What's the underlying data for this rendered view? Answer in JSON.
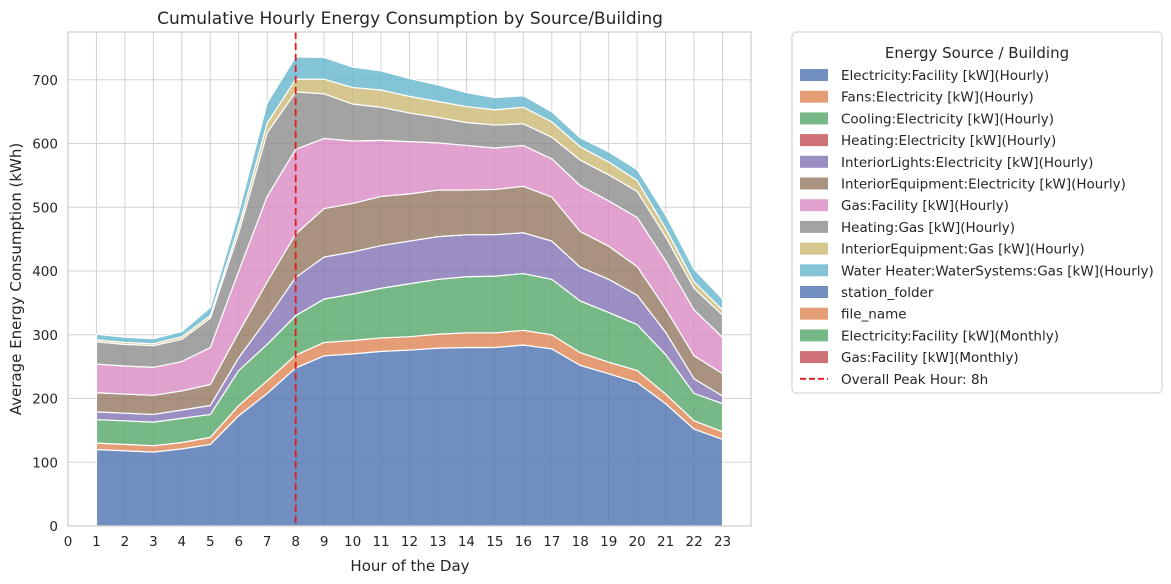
{
  "chart_data": {
    "type": "area",
    "stacked": true,
    "title": "Cumulative Hourly Energy Consumption by Source/Building",
    "xlabel": "Hour of the Day",
    "ylabel": "Average Energy Consumption (kWh)",
    "xlim": [
      0,
      24
    ],
    "ylim": [
      0,
      775
    ],
    "xticks": [
      "0",
      "1",
      "2",
      "3",
      "4",
      "5",
      "6",
      "7",
      "8",
      "9",
      "10",
      "11",
      "12",
      "13",
      "14",
      "15",
      "16",
      "17",
      "18",
      "19",
      "20",
      "21",
      "22",
      "23"
    ],
    "yticks": [
      "0",
      "100",
      "200",
      "300",
      "400",
      "500",
      "600",
      "700"
    ],
    "grid": true,
    "legend_title": "Energy Source / Building",
    "legend_position": "outside-right",
    "x": [
      1,
      2,
      3,
      4,
      5,
      6,
      7,
      8,
      9,
      10,
      11,
      12,
      13,
      14,
      15,
      16,
      17,
      18,
      19,
      20,
      21,
      22,
      23
    ],
    "series": [
      {
        "name": "Electricity:Facility [kW](Hourly)",
        "color": "#4c72b0",
        "values": [
          120,
          118,
          116,
          121,
          128,
          173,
          208,
          248,
          267,
          270,
          274,
          276,
          279,
          280,
          280,
          284,
          278,
          252,
          239,
          225,
          192,
          152,
          136
        ]
      },
      {
        "name": "Fans:Electricity [kW](Hourly)",
        "color": "#dd8452",
        "values": [
          10,
          10,
          10,
          10,
          11,
          16,
          20,
          20,
          21,
          21,
          21,
          21,
          22,
          23,
          23,
          23,
          22,
          20,
          18,
          19,
          15,
          13,
          12
        ]
      },
      {
        "name": "Cooling:Electricity [kW](Hourly)",
        "color": "#55a868",
        "values": [
          37,
          37,
          37,
          38,
          36,
          55,
          57,
          62,
          68,
          73,
          78,
          83,
          86,
          88,
          89,
          89,
          87,
          81,
          78,
          72,
          62,
          43,
          44
        ]
      },
      {
        "name": "Heating:Electricity [kW](Hourly)",
        "color": "#c44e52",
        "values": [
          0,
          0,
          0,
          0,
          0,
          0,
          0,
          0,
          0,
          0,
          0,
          0,
          0,
          0,
          0,
          0,
          0,
          0,
          0,
          0,
          0,
          0,
          0
        ]
      },
      {
        "name": "InteriorLights:Electricity [kW](Hourly)",
        "color": "#8172b3",
        "values": [
          12,
          12,
          12,
          13,
          14,
          20,
          40,
          60,
          66,
          66,
          67,
          67,
          67,
          66,
          65,
          64,
          60,
          53,
          52,
          46,
          35,
          23,
          12
        ]
      },
      {
        "name": "InteriorEquipment:Electricity [kW](Hourly)",
        "color": "#937860",
        "values": [
          30,
          30,
          30,
          30,
          33,
          40,
          58,
          68,
          76,
          76,
          77,
          74,
          73,
          70,
          71,
          73,
          69,
          56,
          52,
          45,
          37,
          36,
          35
        ]
      },
      {
        "name": "Gas:Facility [kW](Hourly)",
        "color": "#da8bc3",
        "values": [
          45,
          44,
          44,
          46,
          58,
          96,
          134,
          133,
          110,
          98,
          88,
          82,
          74,
          70,
          65,
          64,
          60,
          72,
          71,
          77,
          75,
          72,
          57
        ]
      },
      {
        "name": "Heating:Gas [kW](Hourly)",
        "color": "#8c8c8c",
        "values": [
          35,
          34,
          34,
          35,
          46,
          60,
          100,
          90,
          70,
          58,
          52,
          45,
          40,
          36,
          36,
          34,
          34,
          40,
          41,
          41,
          38,
          34,
          35
        ]
      },
      {
        "name": "InteriorEquipment:Gas [kW](Hourly)",
        "color": "#ccb974",
        "values": [
          3,
          3,
          3,
          4,
          4,
          10,
          15,
          20,
          23,
          26,
          27,
          26,
          25,
          25,
          24,
          26,
          24,
          21,
          20,
          17,
          13,
          10,
          8
        ]
      },
      {
        "name": "Water Heater:WaterSystems:Gas [kW](Hourly)",
        "color": "#64b5cd",
        "values": [
          9,
          8,
          8,
          8,
          13,
          22,
          32,
          35,
          34,
          32,
          30,
          28,
          26,
          22,
          19,
          18,
          16,
          14,
          16,
          17,
          21,
          20,
          17
        ]
      },
      {
        "name": "station_folder",
        "color": "#4c72b0",
        "values": [
          0,
          0,
          0,
          0,
          0,
          0,
          0,
          0,
          0,
          0,
          0,
          0,
          0,
          0,
          0,
          0,
          0,
          0,
          0,
          0,
          0,
          0,
          0
        ]
      },
      {
        "name": "file_name",
        "color": "#dd8452",
        "values": [
          0,
          0,
          0,
          0,
          0,
          0,
          0,
          0,
          0,
          0,
          0,
          0,
          0,
          0,
          0,
          0,
          0,
          0,
          0,
          0,
          0,
          0,
          0
        ]
      },
      {
        "name": "Electricity:Facility [kW](Monthly)",
        "color": "#55a868",
        "values": [
          0,
          0,
          0,
          0,
          0,
          0,
          0,
          0,
          0,
          0,
          0,
          0,
          0,
          0,
          0,
          0,
          0,
          0,
          0,
          0,
          0,
          0,
          0
        ]
      },
      {
        "name": "Gas:Facility [kW](Monthly)",
        "color": "#c44e52",
        "values": [
          0,
          0,
          0,
          0,
          0,
          0,
          0,
          0,
          0,
          0,
          0,
          0,
          0,
          0,
          0,
          0,
          0,
          0,
          0,
          0,
          0,
          0,
          0
        ]
      }
    ],
    "peak_line": {
      "x": 8,
      "label": "Overall Peak Hour: 8h",
      "color": "#e41a1c"
    }
  }
}
